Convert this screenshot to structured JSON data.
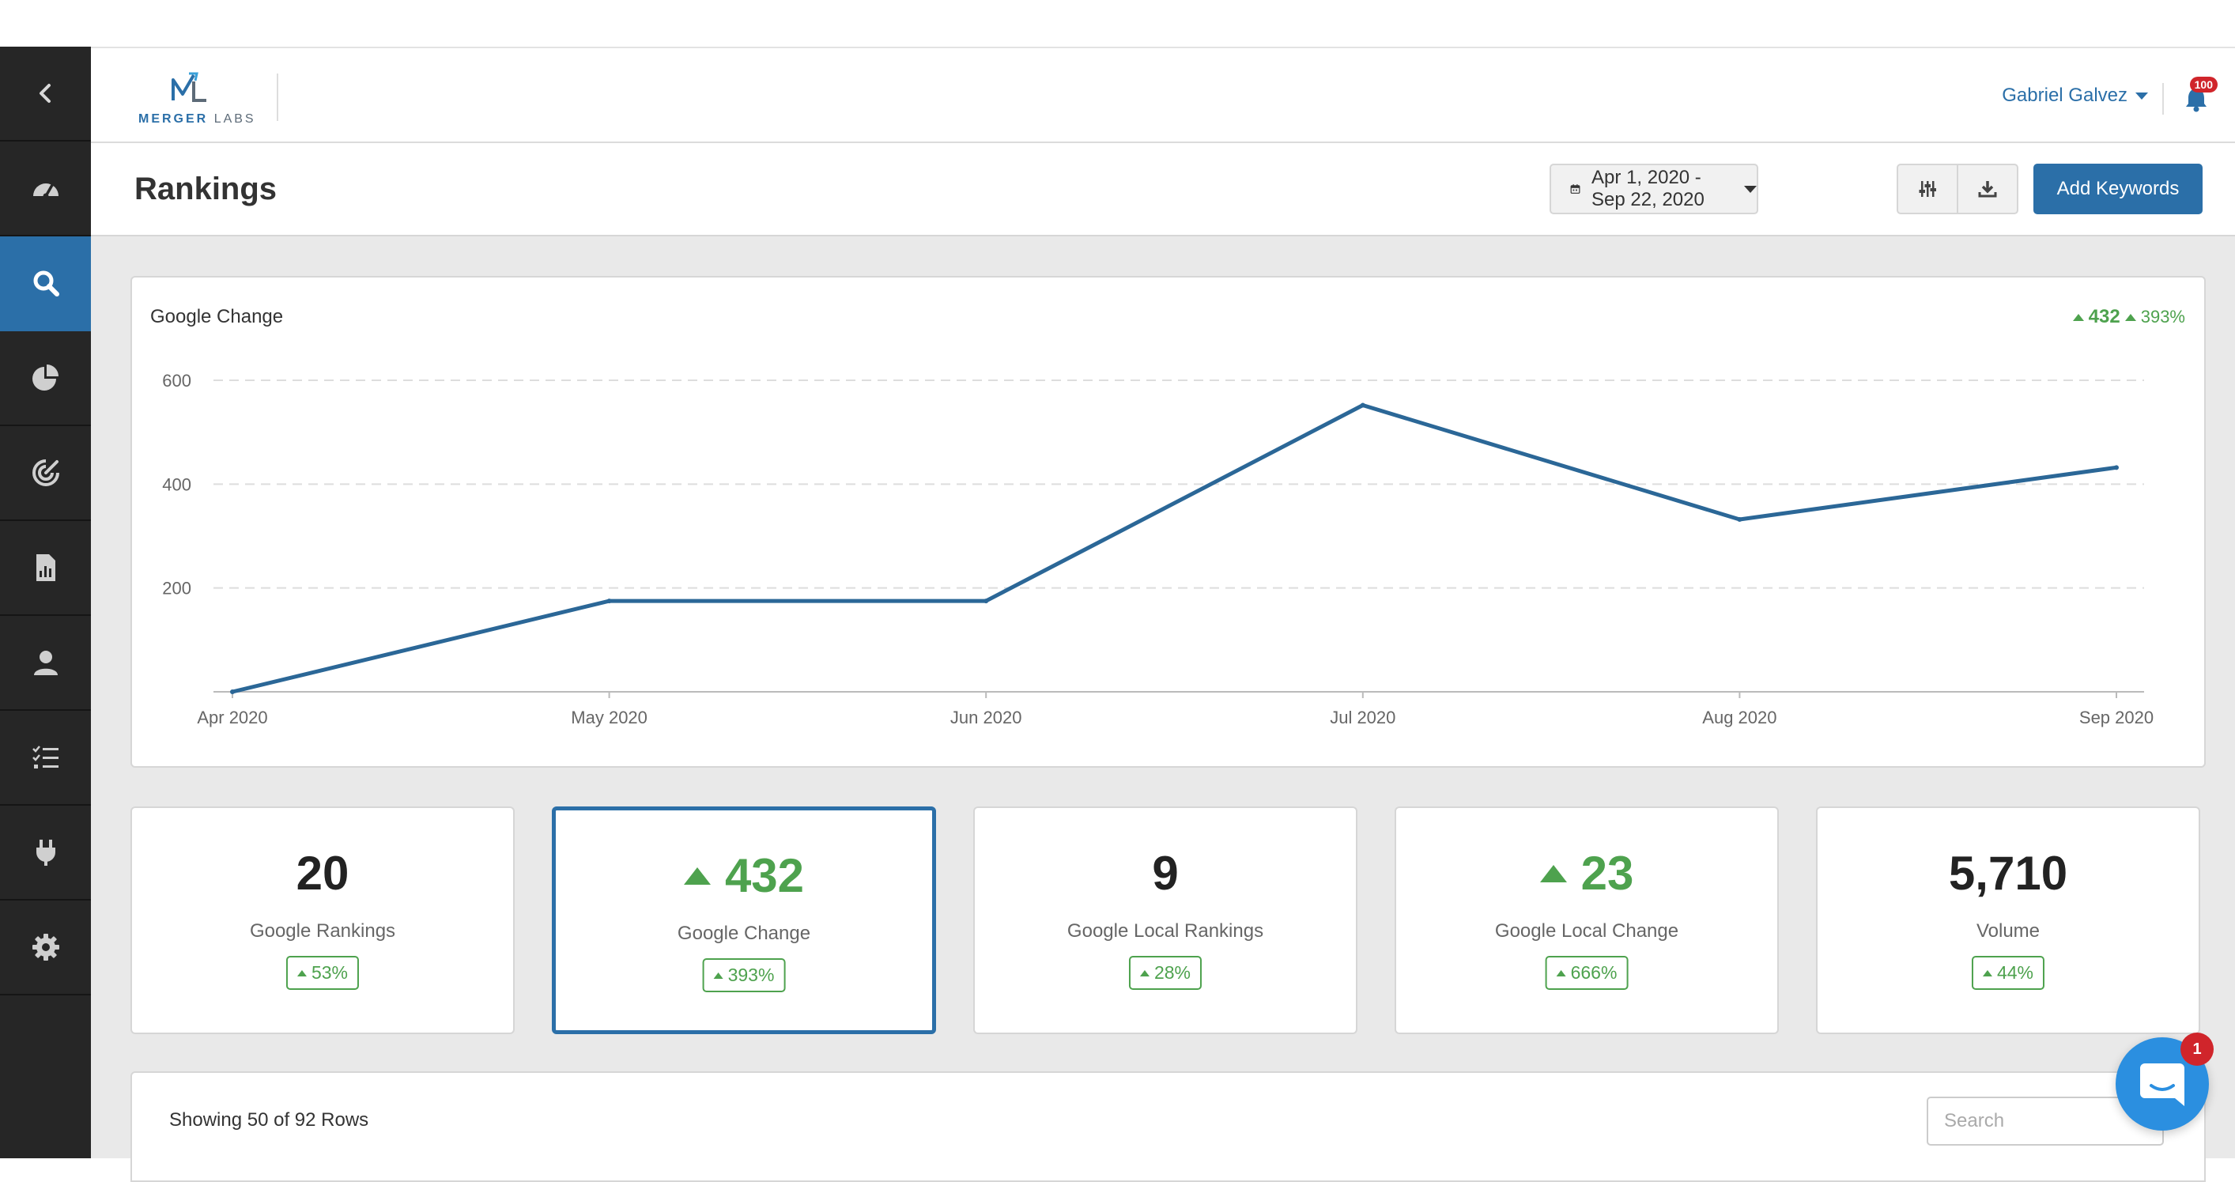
{
  "sidebar": {
    "items": [
      {
        "name": "collapse",
        "icon": "chevron-left-icon"
      },
      {
        "name": "dashboard",
        "icon": "speedometer-icon"
      },
      {
        "name": "rankings",
        "icon": "search-icon",
        "active": true
      },
      {
        "name": "reports",
        "icon": "pie-chart-icon"
      },
      {
        "name": "targeting",
        "icon": "target-icon"
      },
      {
        "name": "documents",
        "icon": "file-chart-icon"
      },
      {
        "name": "users",
        "icon": "user-icon"
      },
      {
        "name": "tasks",
        "icon": "checklist-icon"
      },
      {
        "name": "integrations",
        "icon": "plug-icon"
      },
      {
        "name": "settings",
        "icon": "gear-icon"
      }
    ]
  },
  "header": {
    "logo_mark": "ML",
    "logo_text_bold": "MERGER",
    "logo_text_light": "LABS",
    "user_name": "Gabriel Galvez",
    "notification_count": "100"
  },
  "toolbar": {
    "page_title": "Rankings",
    "date_range": "Apr 1, 2020 - Sep 22, 2020",
    "add_label": "Add Keywords"
  },
  "chart_card": {
    "title": "Google Change",
    "delta_value": "432",
    "delta_percent": "393%"
  },
  "chart_data": {
    "type": "line",
    "title": "Google Change",
    "x": [
      "Apr 2020",
      "May 2020",
      "Jun 2020",
      "Jul 2020",
      "Aug 2020",
      "Sep 2020"
    ],
    "series": [
      {
        "values": [
          0,
          175,
          175,
          552,
          332,
          432
        ]
      }
    ],
    "y_ticks": [
      200,
      400,
      600
    ],
    "ylim": [
      0,
      600
    ],
    "grid": true,
    "line_color": "#2b6797"
  },
  "kpis": [
    {
      "value": "20",
      "label": "Google Rankings",
      "pill": "53%",
      "up": false,
      "selected": false
    },
    {
      "value": "432",
      "label": "Google Change",
      "pill": "393%",
      "up": true,
      "selected": true
    },
    {
      "value": "9",
      "label": "Google Local Rankings",
      "pill": "28%",
      "up": false,
      "selected": false
    },
    {
      "value": "23",
      "label": "Google Local Change",
      "pill": "666%",
      "up": true,
      "selected": false
    },
    {
      "value": "5,710",
      "label": "Volume",
      "pill": "44%",
      "up": false,
      "selected": false
    }
  ],
  "table": {
    "rows_text": "Showing 50 of 92 Rows",
    "search_placeholder": "Search"
  },
  "chat": {
    "badge": "1"
  },
  "colors": {
    "accent": "#2b6fa8",
    "positive": "#4ea24e",
    "sidebar": "#262626",
    "badge": "#d0252b"
  }
}
